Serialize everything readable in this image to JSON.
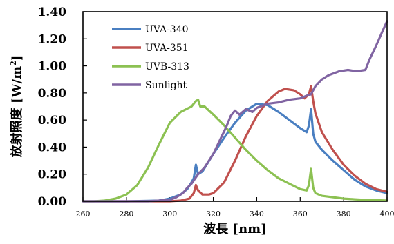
{
  "chart_data": {
    "type": "line",
    "title": "",
    "xlabel": "波長 [nm]",
    "ylabel_main": "放射照度 [W/m",
    "ylabel_sup": "2",
    "ylabel_end": "]",
    "xlim": [
      260,
      400
    ],
    "ylim": [
      0,
      1.4
    ],
    "x_ticks": [
      "260",
      "280",
      "300",
      "320",
      "340",
      "360",
      "380",
      "400"
    ],
    "y_ticks": [
      "0.00",
      "0.20",
      "0.40",
      "0.60",
      "0.80",
      "1.00",
      "1.20",
      "1.40"
    ],
    "grid": false,
    "legend_position": "top-left",
    "series": [
      {
        "name": "UVA-340",
        "color": "#4a7fc1",
        "points": [
          [
            260,
            0
          ],
          [
            270,
            0
          ],
          [
            280,
            0
          ],
          [
            290,
            0.003
          ],
          [
            295,
            0.005
          ],
          [
            300,
            0.02
          ],
          [
            305,
            0.05
          ],
          [
            308,
            0.09
          ],
          [
            310,
            0.14
          ],
          [
            311,
            0.17
          ],
          [
            312,
            0.27
          ],
          [
            313,
            0.2
          ],
          [
            315,
            0.22
          ],
          [
            320,
            0.35
          ],
          [
            325,
            0.47
          ],
          [
            330,
            0.58
          ],
          [
            335,
            0.67
          ],
          [
            340,
            0.72
          ],
          [
            345,
            0.71
          ],
          [
            350,
            0.66
          ],
          [
            355,
            0.6
          ],
          [
            360,
            0.54
          ],
          [
            363,
            0.51
          ],
          [
            364,
            0.56
          ],
          [
            365,
            0.68
          ],
          [
            366,
            0.5
          ],
          [
            367,
            0.44
          ],
          [
            370,
            0.38
          ],
          [
            375,
            0.3
          ],
          [
            380,
            0.23
          ],
          [
            385,
            0.16
          ],
          [
            390,
            0.11
          ],
          [
            395,
            0.08
          ],
          [
            400,
            0.06
          ]
        ]
      },
      {
        "name": "UVA-351",
        "color": "#c0504d",
        "points": [
          [
            260,
            0
          ],
          [
            280,
            0
          ],
          [
            300,
            0
          ],
          [
            305,
            0.005
          ],
          [
            309,
            0.02
          ],
          [
            311,
            0.06
          ],
          [
            312,
            0.12
          ],
          [
            313,
            0.08
          ],
          [
            315,
            0.05
          ],
          [
            318,
            0.05
          ],
          [
            320,
            0.06
          ],
          [
            325,
            0.14
          ],
          [
            330,
            0.3
          ],
          [
            335,
            0.48
          ],
          [
            340,
            0.63
          ],
          [
            345,
            0.74
          ],
          [
            350,
            0.81
          ],
          [
            353,
            0.83
          ],
          [
            357,
            0.82
          ],
          [
            360,
            0.79
          ],
          [
            362,
            0.76
          ],
          [
            364,
            0.79
          ],
          [
            365,
            0.85
          ],
          [
            366,
            0.74
          ],
          [
            367,
            0.65
          ],
          [
            370,
            0.51
          ],
          [
            375,
            0.38
          ],
          [
            380,
            0.27
          ],
          [
            385,
            0.19
          ],
          [
            390,
            0.13
          ],
          [
            395,
            0.09
          ],
          [
            400,
            0.07
          ]
        ]
      },
      {
        "name": "UVB-313",
        "color": "#8cc152",
        "points": [
          [
            260,
            0
          ],
          [
            265,
            0
          ],
          [
            270,
            0.005
          ],
          [
            275,
            0.02
          ],
          [
            280,
            0.05
          ],
          [
            285,
            0.12
          ],
          [
            290,
            0.25
          ],
          [
            295,
            0.42
          ],
          [
            300,
            0.58
          ],
          [
            305,
            0.66
          ],
          [
            310,
            0.7
          ],
          [
            312,
            0.74
          ],
          [
            313,
            0.75
          ],
          [
            314,
            0.7
          ],
          [
            316,
            0.7
          ],
          [
            320,
            0.64
          ],
          [
            325,
            0.56
          ],
          [
            330,
            0.47
          ],
          [
            335,
            0.38
          ],
          [
            340,
            0.3
          ],
          [
            345,
            0.23
          ],
          [
            350,
            0.17
          ],
          [
            355,
            0.13
          ],
          [
            360,
            0.09
          ],
          [
            363,
            0.08
          ],
          [
            364,
            0.12
          ],
          [
            365,
            0.24
          ],
          [
            366,
            0.1
          ],
          [
            367,
            0.06
          ],
          [
            370,
            0.04
          ],
          [
            375,
            0.03
          ],
          [
            380,
            0.02
          ],
          [
            385,
            0.015
          ],
          [
            390,
            0.01
          ],
          [
            395,
            0.008
          ],
          [
            400,
            0.005
          ]
        ]
      },
      {
        "name": "Sunlight",
        "color": "#8064a2",
        "points": [
          [
            260,
            0
          ],
          [
            270,
            0
          ],
          [
            280,
            0
          ],
          [
            290,
            0
          ],
          [
            295,
            0.005
          ],
          [
            300,
            0.01
          ],
          [
            303,
            0.03
          ],
          [
            306,
            0.06
          ],
          [
            308,
            0.1
          ],
          [
            310,
            0.13
          ],
          [
            313,
            0.2
          ],
          [
            316,
            0.25
          ],
          [
            320,
            0.35
          ],
          [
            323,
            0.45
          ],
          [
            326,
            0.55
          ],
          [
            328,
            0.63
          ],
          [
            330,
            0.67
          ],
          [
            332,
            0.64
          ],
          [
            335,
            0.68
          ],
          [
            338,
            0.66
          ],
          [
            340,
            0.69
          ],
          [
            345,
            0.72
          ],
          [
            350,
            0.73
          ],
          [
            355,
            0.75
          ],
          [
            360,
            0.76
          ],
          [
            363,
            0.78
          ],
          [
            365,
            0.79
          ],
          [
            367,
            0.85
          ],
          [
            370,
            0.9
          ],
          [
            373,
            0.93
          ],
          [
            378,
            0.96
          ],
          [
            382,
            0.97
          ],
          [
            386,
            0.96
          ],
          [
            390,
            0.97
          ],
          [
            392,
            1.05
          ],
          [
            395,
            1.15
          ],
          [
            398,
            1.26
          ],
          [
            400,
            1.33
          ]
        ]
      }
    ]
  }
}
